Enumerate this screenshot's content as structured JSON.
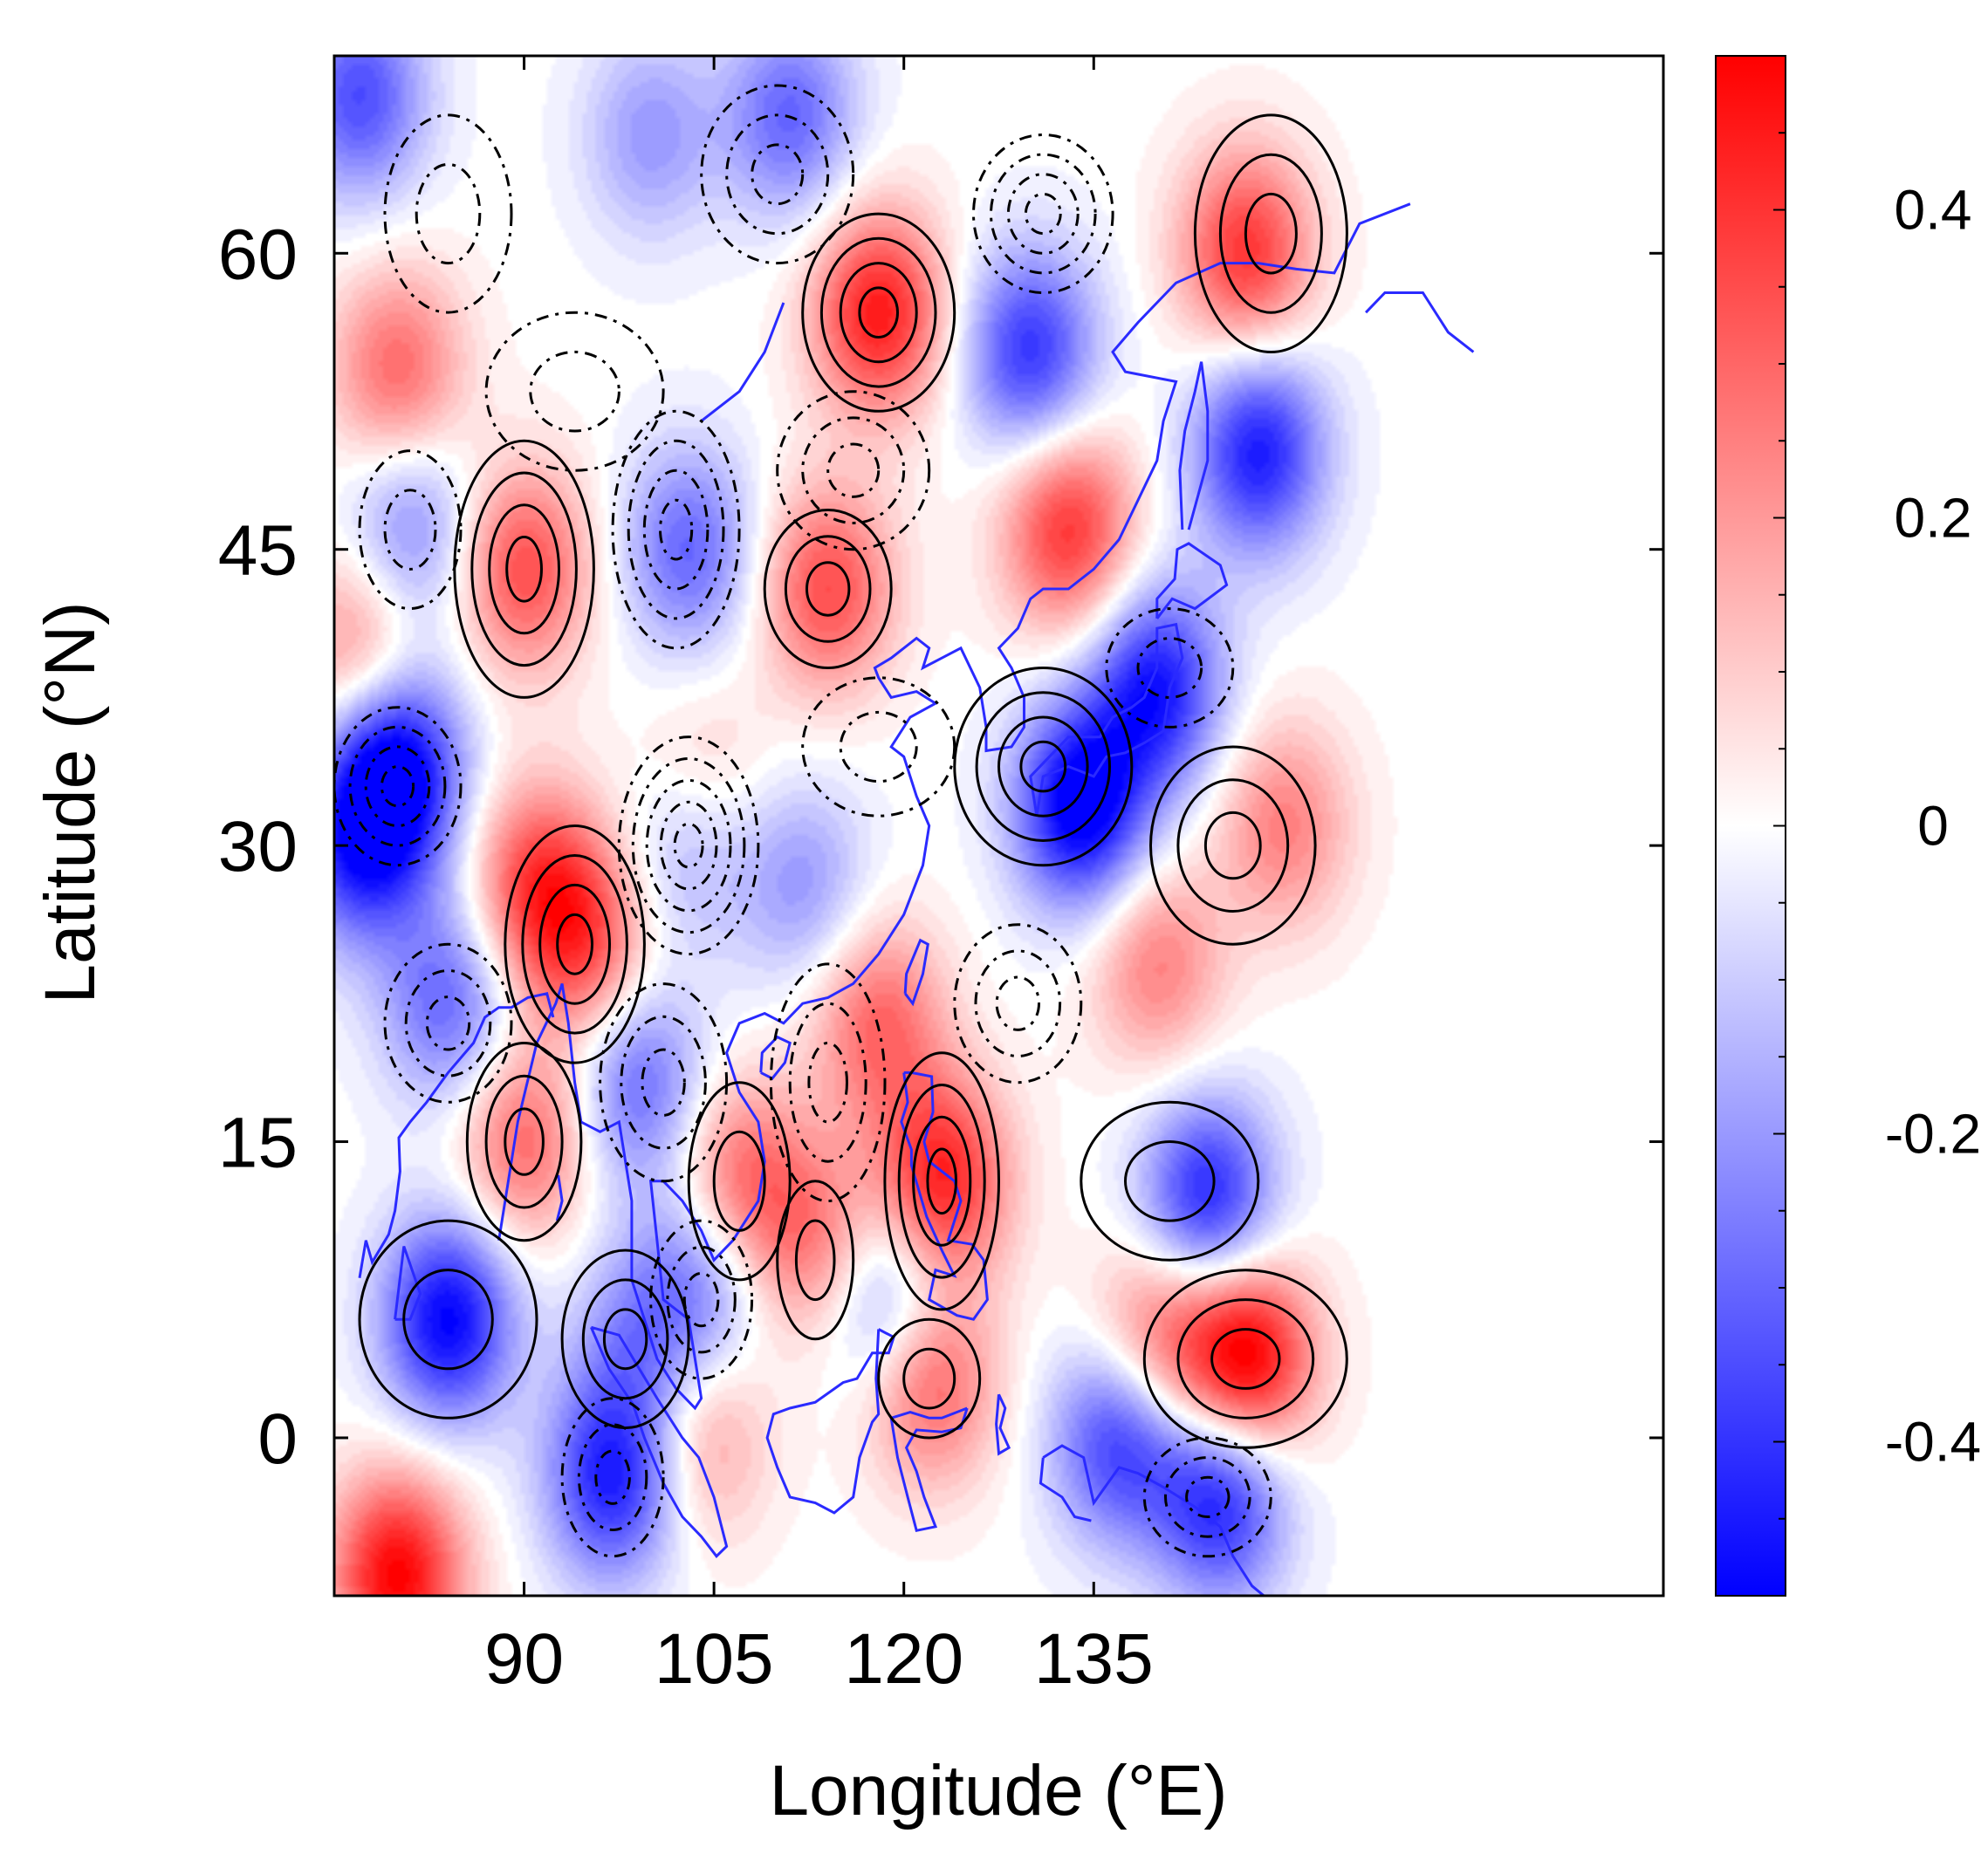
{
  "chart_data": {
    "type": "heatmap",
    "title": "",
    "xlabel": "Longitude (°E)",
    "ylabel": "Latitude (°N)",
    "xlim": [
      75,
      180
    ],
    "ylim": [
      -8,
      70
    ],
    "x_ticks": [
      90,
      105,
      120,
      135
    ],
    "x_tick_labels": [
      "90",
      "105",
      "120",
      "135"
    ],
    "y_ticks": [
      0,
      15,
      30,
      45,
      60
    ],
    "y_tick_labels": [
      "0",
      "15",
      "30",
      "45",
      "60"
    ],
    "colorbar": {
      "min": -0.5,
      "max": 0.5,
      "ticks": [
        -0.4,
        -0.2,
        0,
        0.2,
        0.4
      ],
      "tick_labels": [
        "-0.4",
        "-0.2",
        "0",
        "0.2",
        "0.4"
      ],
      "colors": {
        "low": "#0000ff",
        "mid": "#ffffff",
        "high": "#ff0000"
      }
    },
    "coastline_color": "#2a2aff",
    "contour_color": "#000000",
    "grid": false,
    "anomaly_centers": [
      {
        "lon": 77,
        "lat": 68,
        "value": -0.35
      },
      {
        "lon": 81,
        "lat": 46,
        "value": -0.25
      },
      {
        "lon": 90,
        "lat": 44,
        "value": 0.35
      },
      {
        "lon": 80,
        "lat": 54,
        "value": 0.3
      },
      {
        "lon": 77,
        "lat": 40,
        "value": 0.25
      },
      {
        "lon": 80,
        "lat": 34,
        "value": -0.5
      },
      {
        "lon": 77,
        "lat": 30,
        "value": -0.4
      },
      {
        "lon": 91,
        "lat": 28,
        "value": 0.35
      },
      {
        "lon": 95,
        "lat": 25,
        "value": 0.3
      },
      {
        "lon": 84,
        "lat": 22,
        "value": -0.3
      },
      {
        "lon": 90,
        "lat": 15,
        "value": 0.3
      },
      {
        "lon": 84,
        "lat": 6,
        "value": -0.5
      },
      {
        "lon": 97,
        "lat": -2,
        "value": -0.45
      },
      {
        "lon": 80,
        "lat": -7,
        "value": 0.5
      },
      {
        "lon": 103,
        "lat": 45,
        "value": -0.3
      },
      {
        "lon": 103,
        "lat": 30,
        "value": -0.2
      },
      {
        "lon": 104,
        "lat": 33,
        "value": 0.15
      },
      {
        "lon": 99,
        "lat": 18,
        "value": -0.3
      },
      {
        "lon": 107,
        "lat": 13,
        "value": 0.3
      },
      {
        "lon": 113,
        "lat": 10,
        "value": 0.25
      },
      {
        "lon": 104,
        "lat": 8,
        "value": -0.25
      },
      {
        "lon": 99,
        "lat": 5,
        "value": -0.2
      },
      {
        "lon": 104,
        "lat": 0,
        "value": 0.2
      },
      {
        "lon": 100,
        "lat": 66,
        "value": -0.2
      },
      {
        "lon": 111,
        "lat": 67,
        "value": -0.3
      },
      {
        "lon": 118,
        "lat": 57,
        "value": 0.45
      },
      {
        "lon": 114,
        "lat": 43,
        "value": 0.35
      },
      {
        "lon": 112,
        "lat": 28,
        "value": -0.2
      },
      {
        "lon": 118,
        "lat": 21,
        "value": 0.3
      },
      {
        "lon": 123,
        "lat": 13,
        "value": 0.45
      },
      {
        "lon": 119,
        "lat": 7,
        "value": -0.3
      },
      {
        "lon": 122,
        "lat": 3,
        "value": 0.35
      },
      {
        "lon": 130,
        "lat": 55,
        "value": -0.4
      },
      {
        "lon": 133,
        "lat": 46,
        "value": 0.4
      },
      {
        "lon": 134,
        "lat": 32,
        "value": -0.55
      },
      {
        "lon": 140,
        "lat": 38,
        "value": -0.45
      },
      {
        "lon": 140,
        "lat": 24,
        "value": 0.25
      },
      {
        "lon": 137,
        "lat": 0,
        "value": -0.4
      },
      {
        "lon": 144,
        "lat": 12,
        "value": -0.45
      },
      {
        "lon": 147,
        "lat": 4,
        "value": 0.55
      },
      {
        "lon": 140,
        "lat": 5,
        "value": 0.3
      },
      {
        "lon": 145,
        "lat": -3,
        "value": -0.45
      },
      {
        "lon": 147,
        "lat": 60,
        "value": 0.4
      },
      {
        "lon": 148,
        "lat": 50,
        "value": -0.45
      },
      {
        "lon": 150,
        "lat": 31,
        "value": 0.25
      }
    ],
    "contours": [
      {
        "style": "solid",
        "lon": 90,
        "lat": 44,
        "rx": 5.5,
        "ry": 6.5,
        "n": 4
      },
      {
        "style": "solid",
        "lon": 118,
        "lat": 57,
        "rx": 6,
        "ry": 5,
        "n": 4
      },
      {
        "style": "solid",
        "lon": 114,
        "lat": 43,
        "rx": 5,
        "ry": 4,
        "n": 3
      },
      {
        "style": "solid",
        "lon": 94,
        "lat": 25,
        "rx": 5.5,
        "ry": 6,
        "n": 4
      },
      {
        "style": "solid",
        "lon": 90,
        "lat": 15,
        "rx": 4.5,
        "ry": 5,
        "n": 3
      },
      {
        "style": "solid",
        "lon": 123,
        "lat": 13,
        "rx": 4.5,
        "ry": 6.5,
        "n": 4
      },
      {
        "style": "solid",
        "lon": 131,
        "lat": 34,
        "rx": 7,
        "ry": 5,
        "n": 4
      },
      {
        "style": "solid",
        "lon": 146,
        "lat": 30,
        "rx": 6.5,
        "ry": 5,
        "n": 3
      },
      {
        "style": "solid",
        "lon": 147,
        "lat": 4,
        "rx": 8,
        "ry": 4.5,
        "n": 3
      },
      {
        "style": "solid",
        "lon": 122,
        "lat": 3,
        "rx": 4,
        "ry": 3,
        "n": 2
      },
      {
        "style": "solid",
        "lon": 98,
        "lat": 5,
        "rx": 5,
        "ry": 4.5,
        "n": 3
      },
      {
        "style": "solid",
        "lon": 84,
        "lat": 6,
        "rx": 7,
        "ry": 5,
        "n": 2
      },
      {
        "style": "solid",
        "lon": 141,
        "lat": 13,
        "rx": 7,
        "ry": 4,
        "n": 2
      },
      {
        "style": "solid",
        "lon": 149,
        "lat": 61,
        "rx": 6,
        "ry": 6,
        "n": 3
      },
      {
        "style": "solid",
        "lon": 107,
        "lat": 13,
        "rx": 4,
        "ry": 5,
        "n": 2
      },
      {
        "style": "solid",
        "lon": 113,
        "lat": 9,
        "rx": 3,
        "ry": 4,
        "n": 2
      },
      {
        "style": "dashed",
        "lon": 103,
        "lat": 30,
        "rx": 5.5,
        "ry": 5.5,
        "n": 5
      },
      {
        "style": "dashed",
        "lon": 102,
        "lat": 46,
        "rx": 5,
        "ry": 6,
        "n": 4
      },
      {
        "style": "dashed",
        "lon": 110,
        "lat": 64,
        "rx": 6,
        "ry": 4.5,
        "n": 3
      },
      {
        "style": "dashed",
        "lon": 131,
        "lat": 62,
        "rx": 5.5,
        "ry": 4,
        "n": 4
      },
      {
        "style": "dashed",
        "lon": 116,
        "lat": 49,
        "rx": 6,
        "ry": 4,
        "n": 3
      },
      {
        "style": "dashed",
        "lon": 118,
        "lat": 35,
        "rx": 6,
        "ry": 3.5,
        "n": 2
      },
      {
        "style": "dashed",
        "lon": 114,
        "lat": 18,
        "rx": 4.5,
        "ry": 6,
        "n": 3
      },
      {
        "style": "dashed",
        "lon": 101,
        "lat": 18,
        "rx": 5,
        "ry": 5,
        "n": 3
      },
      {
        "style": "dashed",
        "lon": 84,
        "lat": 21,
        "rx": 5,
        "ry": 4,
        "n": 3
      },
      {
        "style": "dashed",
        "lon": 80,
        "lat": 33,
        "rx": 5,
        "ry": 4,
        "n": 4
      },
      {
        "style": "dashed",
        "lon": 81,
        "lat": 46,
        "rx": 4,
        "ry": 4,
        "n": 2
      },
      {
        "style": "dashed",
        "lon": 129,
        "lat": 22,
        "rx": 5,
        "ry": 4,
        "n": 3
      },
      {
        "style": "dashed",
        "lon": 141,
        "lat": 39,
        "rx": 5,
        "ry": 3,
        "n": 2
      },
      {
        "style": "dashed",
        "lon": 144,
        "lat": -3,
        "rx": 5,
        "ry": 3,
        "n": 3
      },
      {
        "style": "dashed",
        "lon": 97,
        "lat": -2,
        "rx": 4,
        "ry": 4,
        "n": 3
      },
      {
        "style": "dashed",
        "lon": 104,
        "lat": 7,
        "rx": 4,
        "ry": 4,
        "n": 3
      },
      {
        "style": "dashed",
        "lon": 84,
        "lat": 62,
        "rx": 5,
        "ry": 5,
        "n": 2
      },
      {
        "style": "dashed",
        "lon": 94,
        "lat": 53,
        "rx": 7,
        "ry": 4,
        "n": 2
      }
    ]
  }
}
